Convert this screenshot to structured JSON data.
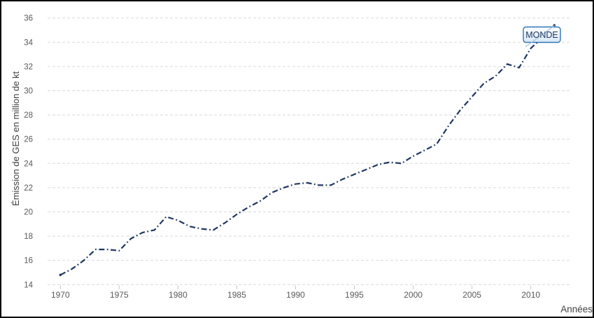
{
  "labels": {
    "y_axis_title": "Émission de GES en million de kt",
    "x_axis_title": "Années",
    "series_label": "MONDE"
  },
  "colors": {
    "line": "#1f3864",
    "gridline": "#d9d9d9",
    "tick_mark": "#c6c6c6",
    "tick_label": "#595959",
    "axis_title": "#404040",
    "callout_border": "#2e75b6",
    "callout_fill_top": "#fdfeff",
    "callout_fill_bottom": "#d9e8f6",
    "callout_text": "#1f3864",
    "leader": "#a8c4e0",
    "background": "#ffffff",
    "outer_border": "#000000"
  },
  "chart_data": {
    "type": "line",
    "title": "",
    "xlabel": "Années",
    "ylabel": "Émission de GES en million de kt",
    "x": [
      1970,
      1971,
      1972,
      1973,
      1974,
      1975,
      1976,
      1977,
      1978,
      1979,
      1980,
      1981,
      1982,
      1983,
      1984,
      1985,
      1986,
      1987,
      1988,
      1989,
      1990,
      1991,
      1992,
      1993,
      1994,
      1995,
      1996,
      1997,
      1998,
      1999,
      2000,
      2001,
      2002,
      2003,
      2004,
      2005,
      2006,
      2007,
      2008,
      2009,
      2010,
      2011,
      2012
    ],
    "series": [
      {
        "name": "MONDE",
        "values": [
          14.8,
          15.3,
          16.0,
          16.9,
          16.9,
          16.8,
          17.8,
          18.3,
          18.5,
          19.6,
          19.3,
          18.8,
          18.6,
          18.5,
          19.1,
          19.8,
          20.4,
          20.9,
          21.6,
          22.0,
          22.3,
          22.4,
          22.2,
          22.2,
          22.7,
          23.1,
          23.5,
          23.9,
          24.1,
          24.0,
          24.6,
          25.1,
          25.6,
          27.1,
          28.4,
          29.5,
          30.6,
          31.2,
          32.2,
          31.9,
          33.5,
          34.4,
          35.4
        ]
      }
    ],
    "xticks": [
      1970,
      1975,
      1980,
      1985,
      1990,
      1995,
      2000,
      2005,
      2010
    ],
    "yticks": [
      14,
      16,
      18,
      20,
      22,
      24,
      26,
      28,
      30,
      32,
      34,
      36
    ],
    "ylim": [
      14,
      36
    ],
    "grid": "horizontal-dashed",
    "line_style": "dash-dot",
    "legend": "callout-label-at-line-end"
  }
}
